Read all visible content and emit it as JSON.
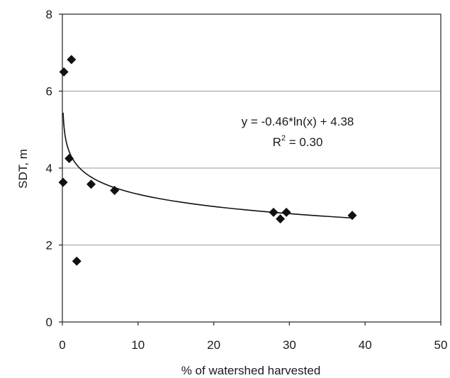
{
  "chart_data": {
    "type": "scatter",
    "xlabel": "% of watershed harvested",
    "ylabel": "SDT, m",
    "xlim": [
      0,
      50
    ],
    "ylim": [
      0,
      8
    ],
    "x_ticks": [
      "0",
      "10",
      "20",
      "30",
      "40",
      "50"
    ],
    "y_ticks": [
      "0",
      "2",
      "4",
      "6",
      "8"
    ],
    "grid": "horizontal",
    "points": [
      {
        "x": 0.2,
        "y": 6.5
      },
      {
        "x": 1.2,
        "y": 6.82
      },
      {
        "x": 0.9,
        "y": 4.25
      },
      {
        "x": 0.1,
        "y": 3.63
      },
      {
        "x": 3.8,
        "y": 3.58
      },
      {
        "x": 6.9,
        "y": 3.42
      },
      {
        "x": 1.9,
        "y": 1.58
      },
      {
        "x": 27.9,
        "y": 2.85
      },
      {
        "x": 28.8,
        "y": 2.68
      },
      {
        "x": 29.6,
        "y": 2.85
      },
      {
        "x": 38.3,
        "y": 2.77
      }
    ],
    "trendline": {
      "type": "logarithmic",
      "a": -0.46,
      "b": 4.38,
      "x_range": [
        0.1,
        38.3
      ]
    },
    "annotations": {
      "equation": "y = -0.46*ln(x) + 4.38",
      "r2_prefix": "R",
      "r2_sup": "2",
      "r2_suffix": " = 0.30"
    },
    "colors": {
      "marker": "#111111",
      "line": "#111111",
      "grid": "#9a9a9a",
      "axis": "#333333"
    }
  }
}
